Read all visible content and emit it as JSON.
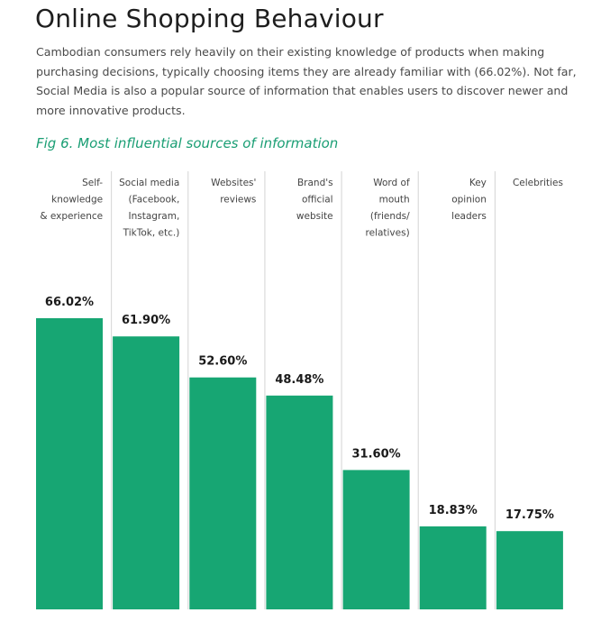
{
  "header": {
    "title": "Online Shopping Behaviour",
    "intro": "Cambodian consumers rely heavily on their existing knowledge of products when making purchasing decisions, typically choosing items they are already familiar with (66.02%). Not far, Social Media is also a popular source of information that enables users to discover newer and more innovative products."
  },
  "figure": {
    "caption": "Fig 6. Most influential sources of information"
  },
  "colors": {
    "bar": "#17a673",
    "caption": "#1a9e74",
    "separator": "#d4d4d4"
  },
  "chart_data": {
    "type": "bar",
    "title": "Fig 6. Most influential sources of information",
    "categories": [
      "Self-knowledge & experience",
      "Social media (Facebook, Instagram, TikTok, etc.)",
      "Websites' reviews",
      "Brand's official website",
      "Word of mouth (friends/relatives)",
      "Key opinion leaders",
      "Celebrities"
    ],
    "category_lines": [
      [
        "Self-",
        "knowledge",
        "& experience"
      ],
      [
        "Social media",
        "(Facebook,",
        "Instagram,",
        "TikTok, etc.)"
      ],
      [
        "Websites'",
        "reviews"
      ],
      [
        "Brand's",
        "official",
        "website"
      ],
      [
        "Word of",
        "mouth",
        "(friends/",
        "relatives)"
      ],
      [
        "Key",
        "opinion",
        "leaders"
      ],
      [
        "Celebrities"
      ]
    ],
    "values": [
      66.02,
      61.9,
      52.6,
      48.48,
      31.6,
      18.83,
      17.75
    ],
    "value_labels": [
      "66.02%",
      "61.90%",
      "52.60%",
      "48.48%",
      "31.60%",
      "18.83%",
      "17.75%"
    ],
    "unit": "%",
    "ylim": [
      0,
      100
    ],
    "grid": false,
    "legend": "none"
  }
}
